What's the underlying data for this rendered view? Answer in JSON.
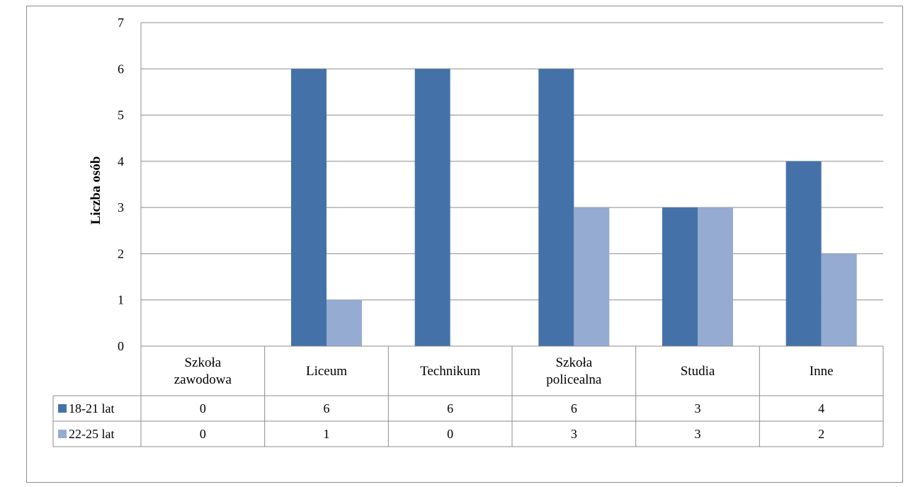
{
  "chart_data": {
    "type": "bar",
    "ylabel": "Liczba osób",
    "ylim": [
      0,
      7
    ],
    "yticks": [
      0,
      1,
      2,
      3,
      4,
      5,
      6,
      7
    ],
    "grid": true,
    "legend": "data-table",
    "categories": [
      [
        "Szkoła",
        "zawodowa"
      ],
      [
        "Liceum"
      ],
      [
        "Technikum"
      ],
      [
        "Szkoła",
        "policealna"
      ],
      [
        "Studia"
      ],
      [
        "Inne"
      ]
    ],
    "series": [
      {
        "name": "18-21 lat",
        "color": "#4472a8",
        "values": [
          0,
          6,
          6,
          6,
          3,
          4
        ]
      },
      {
        "name": "22-25 lat",
        "color": "#95abd1",
        "values": [
          0,
          1,
          0,
          3,
          3,
          2
        ]
      }
    ]
  }
}
